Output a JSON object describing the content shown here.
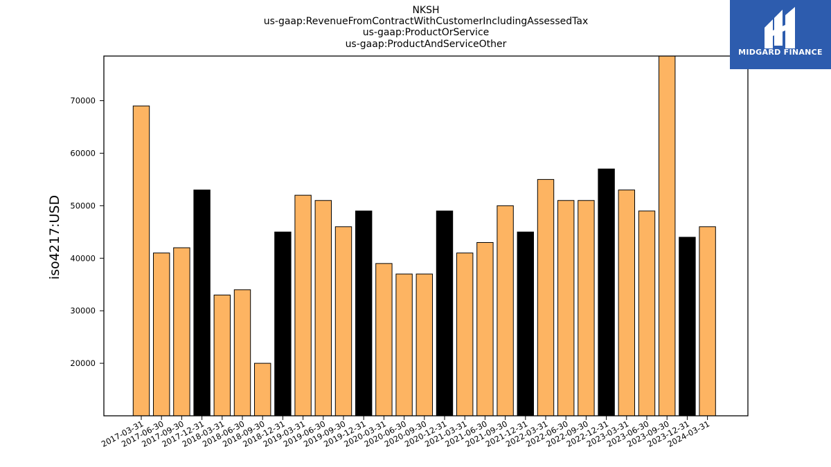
{
  "chart_data": {
    "type": "bar",
    "title_lines": [
      "NKSH",
      "us-gaap:RevenueFromContractWithCustomerIncludingAssessedTax",
      "us-gaap:ProductOrService",
      "us-gaap:ProductAndServiceOther"
    ],
    "xlabel": "",
    "ylabel": "iso4217:USD",
    "ylim": [
      10000,
      78500
    ],
    "yticks": [
      20000,
      30000,
      40000,
      50000,
      60000,
      70000
    ],
    "grid": false,
    "colors": {
      "quarter": "#fdb462",
      "year_end": "#000000",
      "edge": "#000000"
    },
    "categories": [
      "2017-03-31",
      "2017-06-30",
      "2017-09-30",
      "2017-12-31",
      "2018-03-31",
      "2018-06-30",
      "2018-09-30",
      "2018-12-31",
      "2019-03-31",
      "2019-06-30",
      "2019-09-30",
      "2019-12-31",
      "2020-03-31",
      "2020-06-30",
      "2020-09-30",
      "2020-12-31",
      "2021-03-31",
      "2021-06-30",
      "2021-09-30",
      "2021-12-31",
      "2022-03-31",
      "2022-06-30",
      "2022-09-30",
      "2022-12-31",
      "2023-03-31",
      "2023-06-30",
      "2023-09-30",
      "2023-12-31",
      "2024-03-31"
    ],
    "values": [
      69000,
      41000,
      42000,
      53000,
      33000,
      34000,
      20000,
      45000,
      52000,
      51000,
      46000,
      49000,
      39000,
      37000,
      37000,
      49000,
      41000,
      43000,
      50000,
      45000,
      55000,
      51000,
      51000,
      57000,
      53000,
      49000,
      80000,
      44000,
      46000
    ],
    "year_end_flags": [
      false,
      false,
      false,
      true,
      false,
      false,
      false,
      true,
      false,
      false,
      false,
      true,
      false,
      false,
      false,
      true,
      false,
      false,
      false,
      true,
      false,
      false,
      false,
      true,
      false,
      false,
      false,
      true,
      false
    ]
  },
  "logo": {
    "text": "MIDGARD FINANCE"
  }
}
